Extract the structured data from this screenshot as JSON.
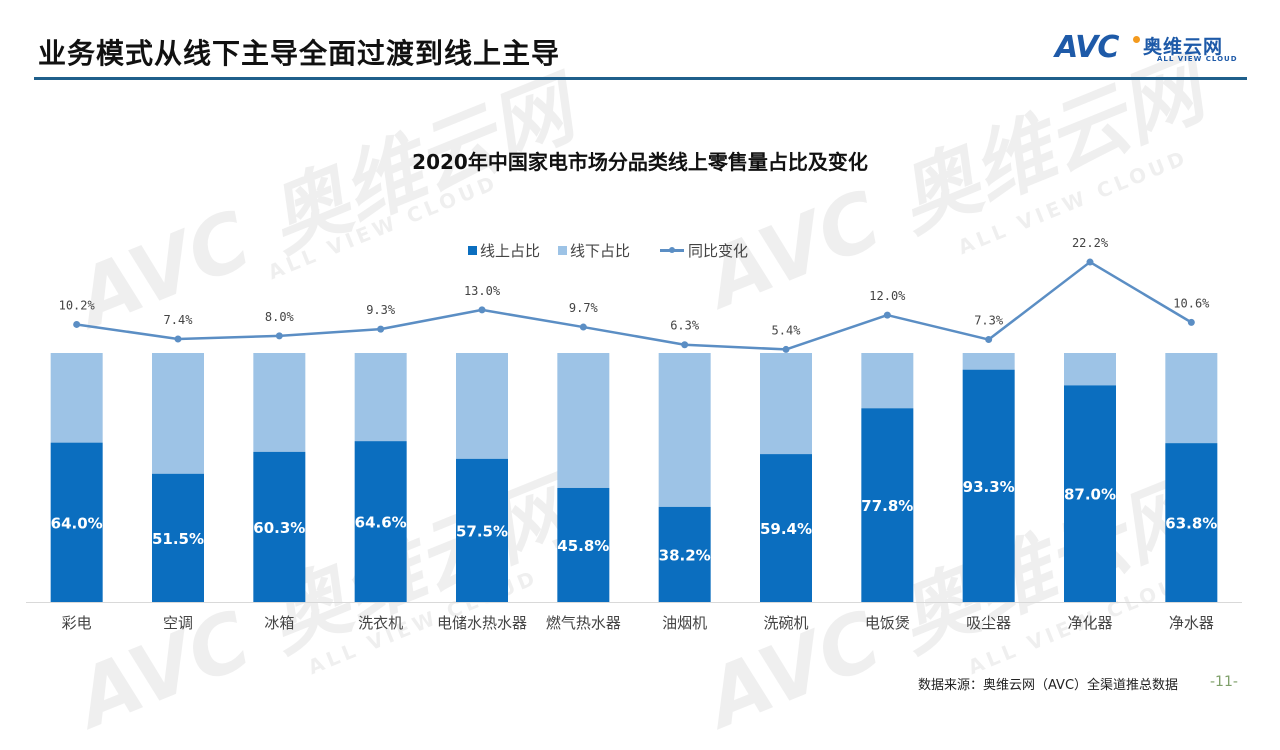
{
  "header": {
    "title": "业务模式从线下主导全面过渡到线上主导",
    "logo_mark": "AVC",
    "logo_cn": "奥维云网",
    "logo_en": "ALL VIEW CLOUD"
  },
  "watermark": {
    "mark": "AVC",
    "cn": "奥维云网",
    "en": "ALL VIEW CLOUD"
  },
  "colors": {
    "online": "#0b6ebf",
    "offline": "#9dc3e6",
    "yoy_line": "#5b8ec4",
    "title_rule": "#1f5f8b",
    "axis": "#d9d9d9"
  },
  "chart_data": {
    "type": "bar",
    "stacked": true,
    "title": "2020年中国家电市场分品类线上零售量占比及变化",
    "xlabel": "",
    "ylabel": "",
    "ylim": [
      0,
      100
    ],
    "grid": false,
    "legend_position": "top",
    "categories": [
      "彩电",
      "空调",
      "冰箱",
      "洗衣机",
      "电储水热水器",
      "燃气热水器",
      "油烟机",
      "洗碗机",
      "电饭煲",
      "吸尘器",
      "净化器",
      "净水器"
    ],
    "series": [
      {
        "name": "线上占比",
        "type": "bar",
        "values": [
          64.0,
          51.5,
          60.3,
          64.6,
          57.5,
          45.8,
          38.2,
          59.4,
          77.8,
          93.3,
          87.0,
          63.8
        ],
        "labels": [
          "64.0%",
          "51.5%",
          "60.3%",
          "64.6%",
          "57.5%",
          "45.8%",
          "38.2%",
          "59.4%",
          "77.8%",
          "93.3%",
          "87.0%",
          "63.8%"
        ]
      },
      {
        "name": "线下占比",
        "type": "bar",
        "values": [
          36.0,
          48.5,
          39.7,
          35.4,
          42.5,
          54.2,
          61.8,
          40.6,
          22.2,
          6.7,
          13.0,
          36.2
        ]
      },
      {
        "name": "同比变化",
        "type": "line",
        "values": [
          10.2,
          7.4,
          8.0,
          9.3,
          13.0,
          9.7,
          6.3,
          5.4,
          12.0,
          7.3,
          22.2,
          10.6
        ],
        "labels": [
          "10.2%",
          "7.4%",
          "8.0%",
          "9.3%",
          "13.0%",
          "9.7%",
          "6.3%",
          "5.4%",
          "12.0%",
          "7.3%",
          "22.2%",
          "10.6%"
        ]
      }
    ]
  },
  "legend": [
    {
      "label": "线上占比"
    },
    {
      "label": "线下占比"
    },
    {
      "label": "同比变化"
    }
  ],
  "footer": {
    "source": "数据来源：奥维云网（AVC）全渠道推总数据",
    "page": "-11-"
  }
}
